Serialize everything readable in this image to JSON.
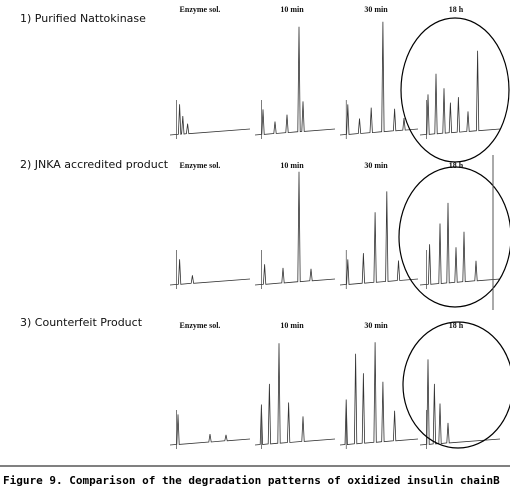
{
  "rows": [
    {
      "label": "1) Purified Nattokinase",
      "columns": [
        "Enzyme sol.",
        "10 min",
        "30 min",
        "18 h"
      ]
    },
    {
      "label": "2) JNKA accredited product",
      "columns": [
        "Enzyme sol.",
        "10 min",
        "30 min",
        "18 h"
      ]
    },
    {
      "label": "3) Counterfeit Product",
      "columns": [
        "Enzyme sol.",
        "10 min",
        "30 min",
        "18 h"
      ]
    }
  ],
  "caption": "Figure 9. Comparison of the degradation patterns of oxidized insulin chainB"
}
